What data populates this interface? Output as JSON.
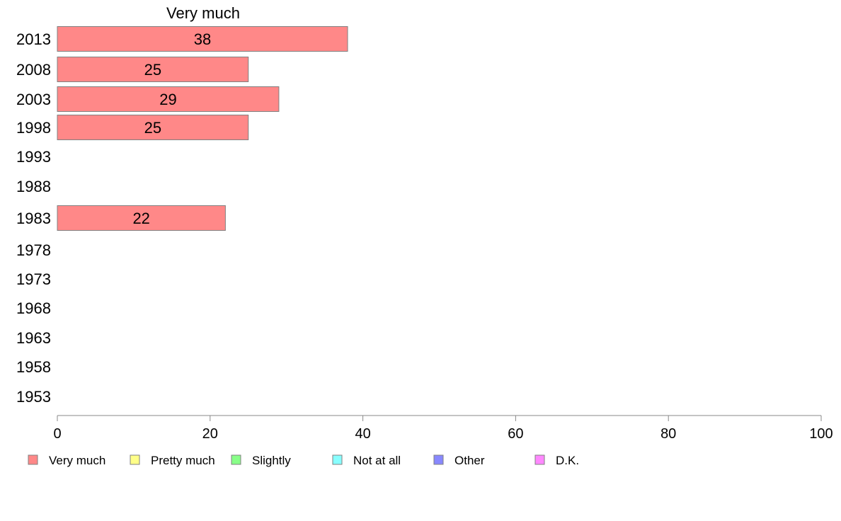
{
  "chart_data": {
    "type": "bar",
    "orientation": "horizontal",
    "title": "Very much",
    "categories": [
      "2013",
      "2008",
      "2003",
      "1998",
      "1993",
      "1988",
      "1983",
      "1978",
      "1973",
      "1968",
      "1963",
      "1958",
      "1953"
    ],
    "series": [
      {
        "name": "Very much",
        "values": [
          38,
          25,
          29,
          25,
          null,
          null,
          22,
          null,
          null,
          null,
          null,
          null,
          null
        ],
        "labels": [
          "38",
          "25",
          "29",
          "25",
          "",
          "",
          "22",
          "",
          "",
          "",
          "",
          "",
          ""
        ]
      }
    ],
    "xlim": [
      0,
      100
    ],
    "xticks": [
      "0",
      "20",
      "40",
      "60",
      "80",
      "100"
    ],
    "grid": false,
    "legend_position": "bottom",
    "legend": [
      {
        "label": "Very much",
        "color": "#ff8888"
      },
      {
        "label": "Pretty much",
        "color": "#ffff88"
      },
      {
        "label": "Slightly",
        "color": "#88ff88"
      },
      {
        "label": "Not at all",
        "color": "#88ffff"
      },
      {
        "label": "Other",
        "color": "#8888ff"
      },
      {
        "label": "D.K.",
        "color": "#ff88ff"
      }
    ],
    "bar_color": "#ff8888"
  }
}
